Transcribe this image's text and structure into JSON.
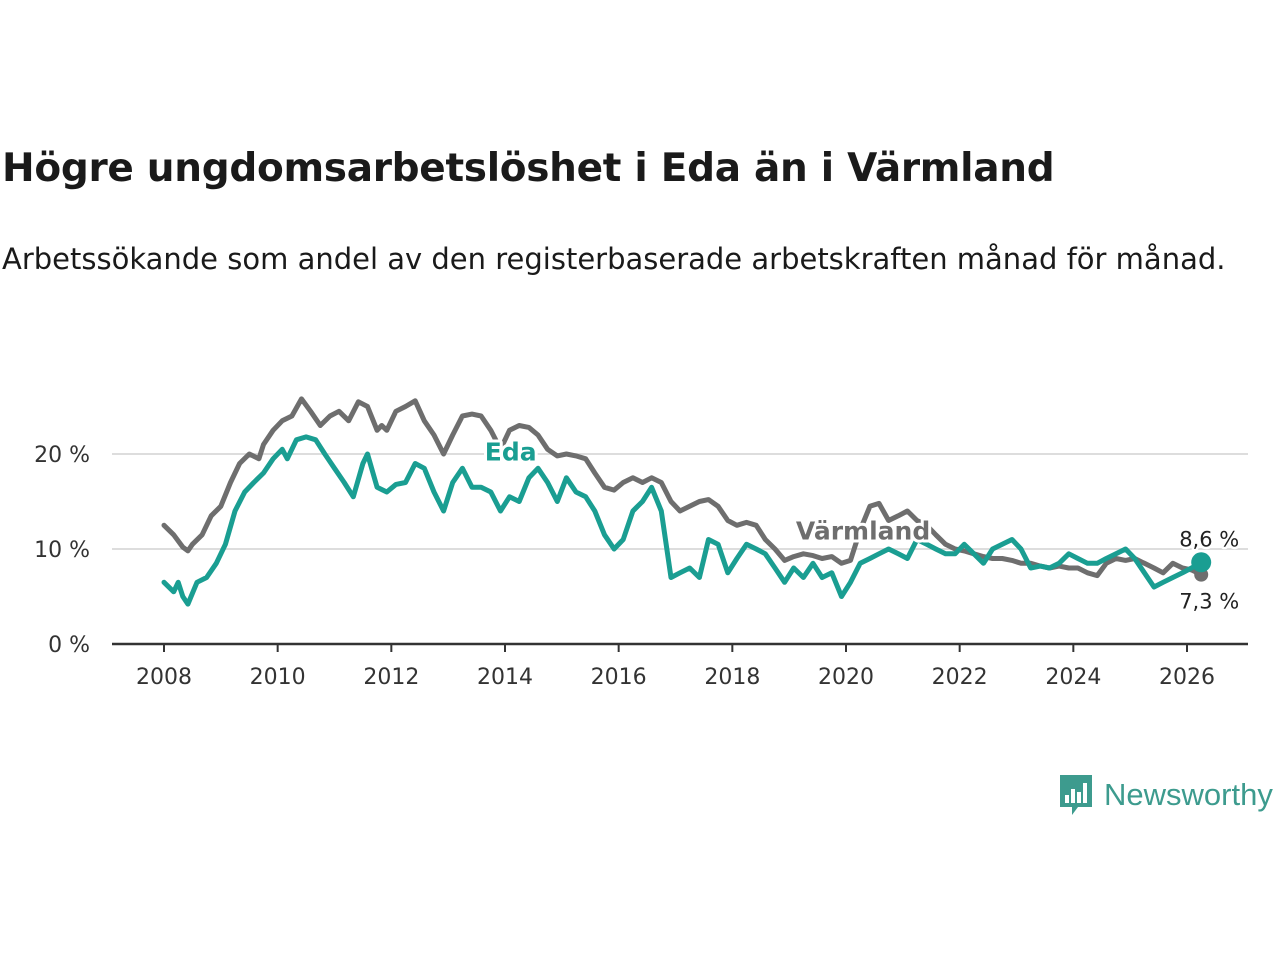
{
  "chart_data": {
    "type": "line",
    "title": "Högre ungdomsarbetslöshet i Eda än i Värmland",
    "subtitle": "Arbetssökande som andel av den registerbaserade arbetskraften månad för månad.",
    "xlabel": "",
    "ylabel": "",
    "x_ticks": [
      "2008",
      "2010",
      "2012",
      "2014",
      "2016",
      "2018",
      "2020",
      "2022",
      "2024",
      "2026"
    ],
    "y_ticks": [
      "0 %",
      "10 %",
      "20 %"
    ],
    "xlim": [
      2007.6,
      2026.8
    ],
    "ylim": [
      0,
      27
    ],
    "grid": true,
    "colors": {
      "Eda": "#1a9e92",
      "Värmland": "#6e6e6e"
    },
    "series": [
      {
        "name": "Värmland",
        "label": "Värmland",
        "end_label": "7,3 %",
        "points": [
          [
            2008.0,
            12.5
          ],
          [
            2008.17,
            11.5
          ],
          [
            2008.33,
            10.2
          ],
          [
            2008.42,
            9.8
          ],
          [
            2008.5,
            10.5
          ],
          [
            2008.67,
            11.5
          ],
          [
            2008.83,
            13.5
          ],
          [
            2009.0,
            14.5
          ],
          [
            2009.17,
            17.0
          ],
          [
            2009.33,
            19.0
          ],
          [
            2009.5,
            20.0
          ],
          [
            2009.67,
            19.5
          ],
          [
            2009.75,
            21.0
          ],
          [
            2009.92,
            22.5
          ],
          [
            2010.08,
            23.5
          ],
          [
            2010.25,
            24.0
          ],
          [
            2010.42,
            25.8
          ],
          [
            2010.58,
            24.5
          ],
          [
            2010.75,
            23.0
          ],
          [
            2010.92,
            24.0
          ],
          [
            2011.08,
            24.5
          ],
          [
            2011.25,
            23.5
          ],
          [
            2011.42,
            25.5
          ],
          [
            2011.58,
            25.0
          ],
          [
            2011.75,
            22.5
          ],
          [
            2011.83,
            23.0
          ],
          [
            2011.92,
            22.5
          ],
          [
            2012.08,
            24.5
          ],
          [
            2012.25,
            25.0
          ],
          [
            2012.42,
            25.6
          ],
          [
            2012.58,
            23.5
          ],
          [
            2012.75,
            22.0
          ],
          [
            2012.92,
            20.0
          ],
          [
            2013.08,
            22.0
          ],
          [
            2013.25,
            24.0
          ],
          [
            2013.42,
            24.2
          ],
          [
            2013.58,
            24.0
          ],
          [
            2013.75,
            22.5
          ],
          [
            2013.92,
            20.5
          ],
          [
            2014.08,
            22.5
          ],
          [
            2014.25,
            23.0
          ],
          [
            2014.42,
            22.8
          ],
          [
            2014.58,
            22.0
          ],
          [
            2014.75,
            20.5
          ],
          [
            2014.92,
            19.8
          ],
          [
            2015.08,
            20.0
          ],
          [
            2015.25,
            19.8
          ],
          [
            2015.42,
            19.5
          ],
          [
            2015.58,
            18.0
          ],
          [
            2015.75,
            16.5
          ],
          [
            2015.92,
            16.2
          ],
          [
            2016.08,
            17.0
          ],
          [
            2016.25,
            17.5
          ],
          [
            2016.42,
            17.0
          ],
          [
            2016.58,
            17.5
          ],
          [
            2016.75,
            17.0
          ],
          [
            2016.92,
            15.0
          ],
          [
            2017.08,
            14.0
          ],
          [
            2017.25,
            14.5
          ],
          [
            2017.42,
            15.0
          ],
          [
            2017.58,
            15.2
          ],
          [
            2017.75,
            14.5
          ],
          [
            2017.92,
            13.0
          ],
          [
            2018.08,
            12.5
          ],
          [
            2018.25,
            12.8
          ],
          [
            2018.42,
            12.5
          ],
          [
            2018.58,
            11.0
          ],
          [
            2018.75,
            10.0
          ],
          [
            2018.92,
            8.8
          ],
          [
            2019.08,
            9.2
          ],
          [
            2019.25,
            9.5
          ],
          [
            2019.42,
            9.3
          ],
          [
            2019.58,
            9.0
          ],
          [
            2019.75,
            9.2
          ],
          [
            2019.92,
            8.5
          ],
          [
            2020.08,
            8.8
          ],
          [
            2020.25,
            12.0
          ],
          [
            2020.42,
            14.5
          ],
          [
            2020.58,
            14.8
          ],
          [
            2020.75,
            13.0
          ],
          [
            2020.92,
            13.5
          ],
          [
            2021.08,
            14.0
          ],
          [
            2021.25,
            13.0
          ],
          [
            2021.42,
            12.5
          ],
          [
            2021.58,
            11.5
          ],
          [
            2021.75,
            10.5
          ],
          [
            2021.92,
            10.0
          ],
          [
            2022.08,
            9.8
          ],
          [
            2022.25,
            9.5
          ],
          [
            2022.42,
            9.2
          ],
          [
            2022.58,
            9.0
          ],
          [
            2022.75,
            9.0
          ],
          [
            2022.92,
            8.8
          ],
          [
            2023.08,
            8.5
          ],
          [
            2023.25,
            8.5
          ],
          [
            2023.42,
            8.2
          ],
          [
            2023.58,
            8.0
          ],
          [
            2023.75,
            8.2
          ],
          [
            2023.92,
            8.0
          ],
          [
            2024.08,
            8.0
          ],
          [
            2024.25,
            7.5
          ],
          [
            2024.42,
            7.2
          ],
          [
            2024.58,
            8.5
          ],
          [
            2024.75,
            9.0
          ],
          [
            2024.92,
            8.8
          ],
          [
            2025.08,
            9.0
          ],
          [
            2025.25,
            8.5
          ],
          [
            2025.42,
            8.0
          ],
          [
            2025.58,
            7.5
          ],
          [
            2025.75,
            8.5
          ],
          [
            2025.92,
            8.0
          ],
          [
            2026.08,
            7.8
          ],
          [
            2026.25,
            7.3
          ]
        ]
      },
      {
        "name": "Eda",
        "label": "Eda",
        "end_label": "8,6 %",
        "points": [
          [
            2008.0,
            6.5
          ],
          [
            2008.17,
            5.5
          ],
          [
            2008.25,
            6.5
          ],
          [
            2008.33,
            5.0
          ],
          [
            2008.42,
            4.2
          ],
          [
            2008.58,
            6.5
          ],
          [
            2008.75,
            7.0
          ],
          [
            2008.92,
            8.5
          ],
          [
            2009.08,
            10.5
          ],
          [
            2009.25,
            14.0
          ],
          [
            2009.42,
            16.0
          ],
          [
            2009.58,
            17.0
          ],
          [
            2009.75,
            18.0
          ],
          [
            2009.92,
            19.5
          ],
          [
            2010.08,
            20.5
          ],
          [
            2010.17,
            19.5
          ],
          [
            2010.33,
            21.5
          ],
          [
            2010.5,
            21.8
          ],
          [
            2010.67,
            21.5
          ],
          [
            2010.83,
            20.0
          ],
          [
            2011.0,
            18.5
          ],
          [
            2011.17,
            17.0
          ],
          [
            2011.33,
            15.5
          ],
          [
            2011.5,
            19.0
          ],
          [
            2011.58,
            20.0
          ],
          [
            2011.75,
            16.5
          ],
          [
            2011.92,
            16.0
          ],
          [
            2012.08,
            16.8
          ],
          [
            2012.25,
            17.0
          ],
          [
            2012.42,
            19.0
          ],
          [
            2012.58,
            18.5
          ],
          [
            2012.75,
            16.0
          ],
          [
            2012.92,
            14.0
          ],
          [
            2013.08,
            17.0
          ],
          [
            2013.25,
            18.5
          ],
          [
            2013.42,
            16.5
          ],
          [
            2013.58,
            16.5
          ],
          [
            2013.75,
            16.0
          ],
          [
            2013.92,
            14.0
          ],
          [
            2014.08,
            15.5
          ],
          [
            2014.25,
            15.0
          ],
          [
            2014.42,
            17.5
          ],
          [
            2014.58,
            18.5
          ],
          [
            2014.75,
            17.0
          ],
          [
            2014.92,
            15.0
          ],
          [
            2015.08,
            17.5
          ],
          [
            2015.25,
            16.0
          ],
          [
            2015.42,
            15.5
          ],
          [
            2015.58,
            14.0
          ],
          [
            2015.75,
            11.5
          ],
          [
            2015.92,
            10.0
          ],
          [
            2016.08,
            11.0
          ],
          [
            2016.25,
            14.0
          ],
          [
            2016.42,
            15.0
          ],
          [
            2016.58,
            16.5
          ],
          [
            2016.75,
            14.0
          ],
          [
            2016.92,
            7.0
          ],
          [
            2017.08,
            7.5
          ],
          [
            2017.25,
            8.0
          ],
          [
            2017.42,
            7.0
          ],
          [
            2017.58,
            11.0
          ],
          [
            2017.75,
            10.5
          ],
          [
            2017.92,
            7.5
          ],
          [
            2018.08,
            9.0
          ],
          [
            2018.25,
            10.5
          ],
          [
            2018.42,
            10.0
          ],
          [
            2018.58,
            9.5
          ],
          [
            2018.75,
            8.0
          ],
          [
            2018.92,
            6.5
          ],
          [
            2019.08,
            8.0
          ],
          [
            2019.25,
            7.0
          ],
          [
            2019.42,
            8.5
          ],
          [
            2019.58,
            7.0
          ],
          [
            2019.75,
            7.5
          ],
          [
            2019.92,
            5.0
          ],
          [
            2020.08,
            6.5
          ],
          [
            2020.25,
            8.5
          ],
          [
            2020.42,
            9.0
          ],
          [
            2020.58,
            9.5
          ],
          [
            2020.75,
            10.0
          ],
          [
            2020.92,
            9.5
          ],
          [
            2021.08,
            9.0
          ],
          [
            2021.25,
            11.0
          ],
          [
            2021.42,
            10.5
          ],
          [
            2021.58,
            10.0
          ],
          [
            2021.75,
            9.5
          ],
          [
            2021.92,
            9.5
          ],
          [
            2022.08,
            10.5
          ],
          [
            2022.25,
            9.5
          ],
          [
            2022.42,
            8.5
          ],
          [
            2022.58,
            10.0
          ],
          [
            2022.75,
            10.5
          ],
          [
            2022.92,
            11.0
          ],
          [
            2023.08,
            10.0
          ],
          [
            2023.25,
            8.0
          ],
          [
            2023.42,
            8.2
          ],
          [
            2023.58,
            8.0
          ],
          [
            2023.75,
            8.5
          ],
          [
            2023.92,
            9.5
          ],
          [
            2024.08,
            9.0
          ],
          [
            2024.25,
            8.5
          ],
          [
            2024.42,
            8.5
          ],
          [
            2024.58,
            9.0
          ],
          [
            2024.75,
            9.5
          ],
          [
            2024.92,
            10.0
          ],
          [
            2025.08,
            9.0
          ],
          [
            2025.25,
            7.5
          ],
          [
            2025.42,
            6.0
          ],
          [
            2025.58,
            6.5
          ],
          [
            2025.75,
            7.0
          ],
          [
            2025.92,
            7.5
          ],
          [
            2026.08,
            8.0
          ],
          [
            2026.25,
            8.6
          ]
        ]
      }
    ]
  },
  "brand": {
    "name": "Newsworthy",
    "color": "#3d9b8e"
  }
}
